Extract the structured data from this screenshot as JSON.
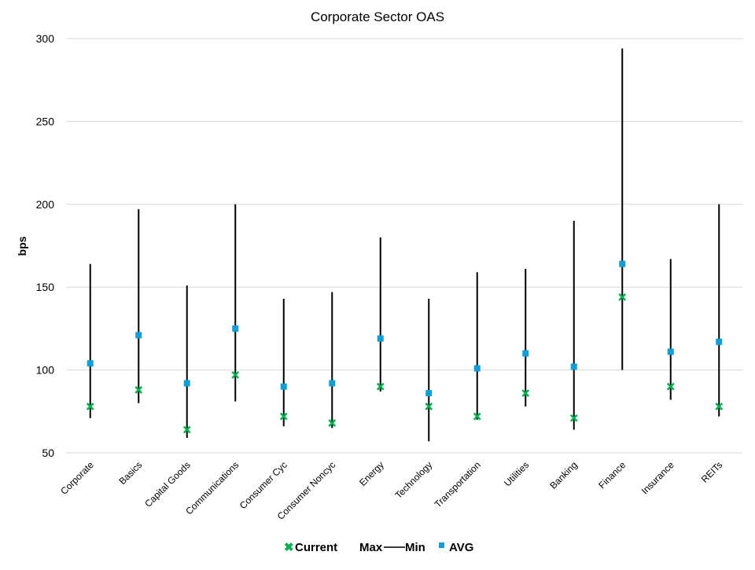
{
  "chart_data": {
    "type": "scatter",
    "title": "Corporate Sector OAS",
    "xlabel": "",
    "ylabel": "bps",
    "ylim": [
      50,
      300
    ],
    "yticks": [
      50,
      100,
      150,
      200,
      250,
      300
    ],
    "grid": true,
    "legend_position": "bottom",
    "categories": [
      "Corporate",
      "Basics",
      "Capital Goods",
      "Communications",
      "Consumer Cyc",
      "Consumer Noncyc",
      "Energy",
      "Technology",
      "Transportation",
      "Utilities",
      "Banking",
      "Finance",
      "Insurance",
      "REITs"
    ],
    "series": [
      {
        "name": "Max",
        "values": [
          164,
          197,
          151,
          200,
          143,
          147,
          180,
          143,
          159,
          161,
          190,
          294,
          167,
          200
        ]
      },
      {
        "name": "Min",
        "values": [
          71,
          80,
          59,
          81,
          66,
          65,
          87,
          57,
          70,
          78,
          64,
          100,
          82,
          72
        ]
      },
      {
        "name": "AVG",
        "values": [
          104,
          121,
          92,
          125,
          90,
          92,
          119,
          86,
          101,
          110,
          102,
          164,
          111,
          117
        ]
      },
      {
        "name": "Current",
        "values": [
          78,
          88,
          64,
          97,
          72,
          68,
          90,
          78,
          72,
          86,
          71,
          144,
          90,
          78
        ]
      }
    ],
    "legend": {
      "current": "Current",
      "max": "Max",
      "min": "Min",
      "avg": "AVG"
    },
    "colors": {
      "current": "#00b050",
      "avg": "#0f9ed5",
      "range": "#000000",
      "grid": "#d9d9d9"
    }
  }
}
